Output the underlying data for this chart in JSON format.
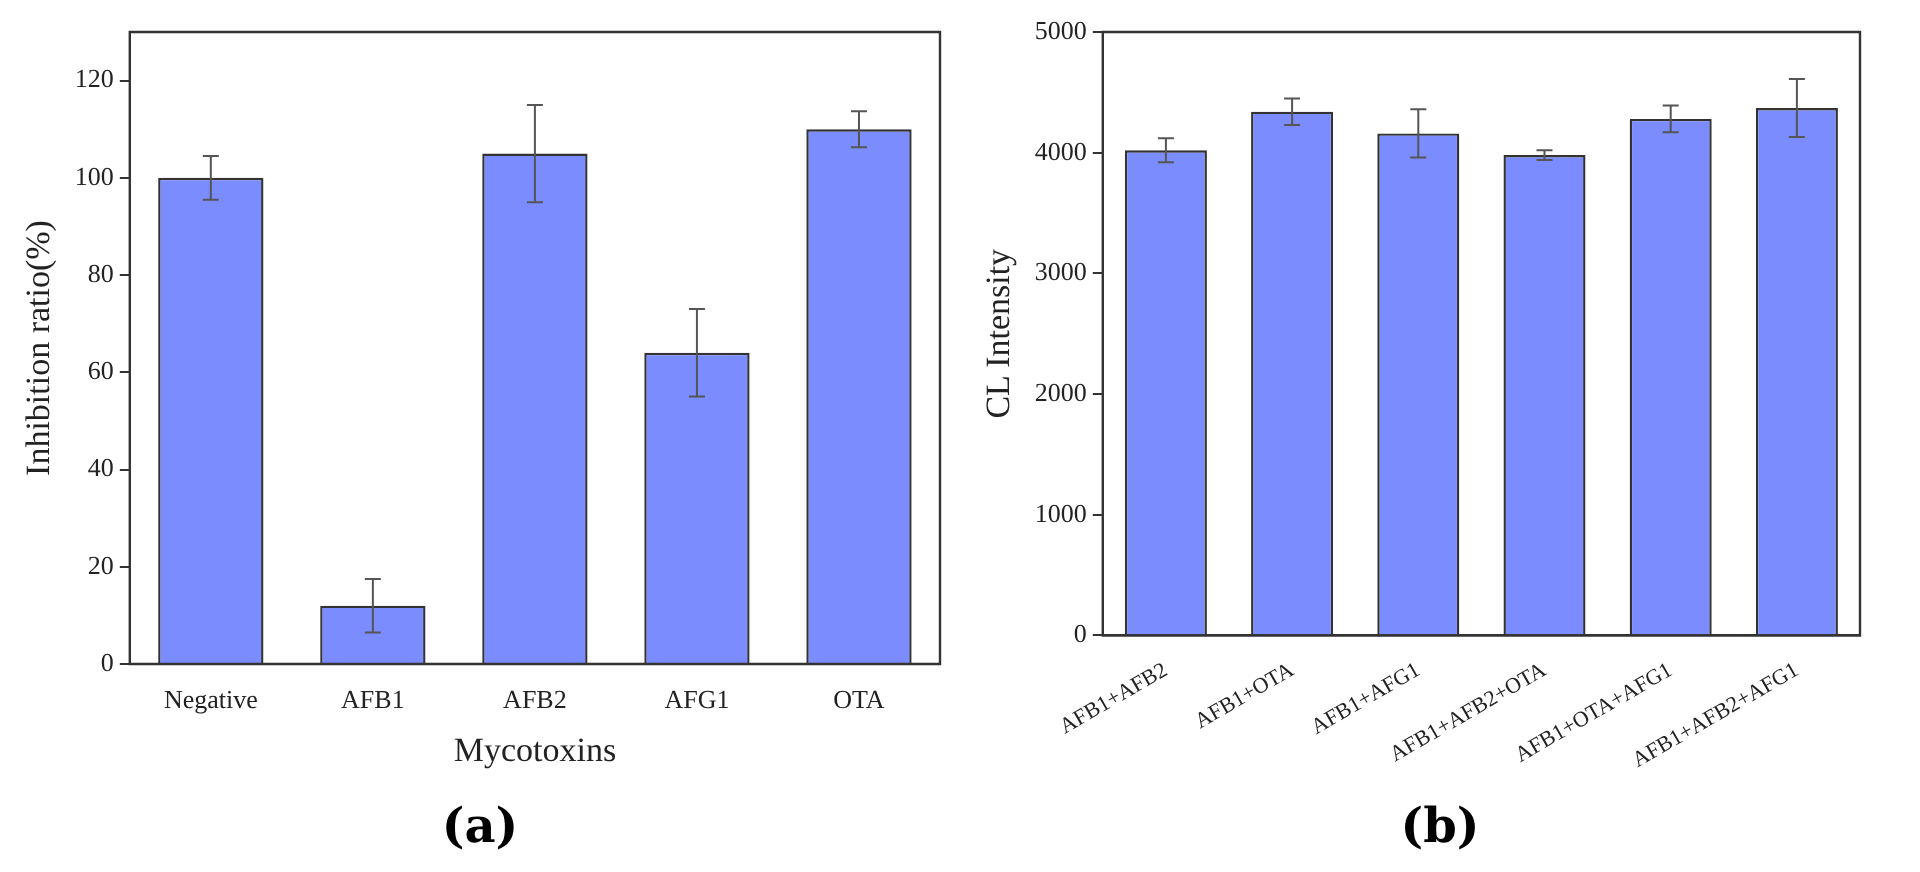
{
  "chart_data": [
    {
      "type": "bar",
      "xlabel": "Mycotoxins",
      "ylabel": "Inhibition ratio(%)",
      "categories": [
        "Negative",
        "AFB1",
        "AFB2",
        "AFG1",
        "OTA"
      ],
      "values": [
        100,
        12,
        105,
        64,
        110
      ],
      "color": "#7b8cff",
      "errors": [
        4.5,
        5.5,
        10,
        9,
        3.7
      ],
      "ylim": [
        0,
        130
      ],
      "yticks": [
        0,
        20,
        40,
        60,
        80,
        100,
        120
      ],
      "grid": false,
      "legend": false,
      "annotations": [
        "(a)"
      ]
    },
    {
      "type": "bar",
      "ylabel": "CL Intensity",
      "categories": [
        "AFB1+AFB2",
        "AFB1+OTA",
        "AFB1+AFG1",
        "AFB1+AFB2+OTA",
        "AFB1+OTA+AFG1",
        "AFB1+AFB2+AFG1"
      ],
      "values": [
        4020,
        4340,
        4160,
        3980,
        4280,
        4370
      ],
      "color": "#7b8cff",
      "errors": [
        100,
        110,
        200,
        40,
        110,
        240
      ],
      "ylim": [
        0,
        5000
      ],
      "yticks": [
        0,
        1000,
        2000,
        3000,
        4000,
        5000
      ],
      "grid": false,
      "legend": false,
      "annotations": [
        "(b)"
      ]
    }
  ]
}
